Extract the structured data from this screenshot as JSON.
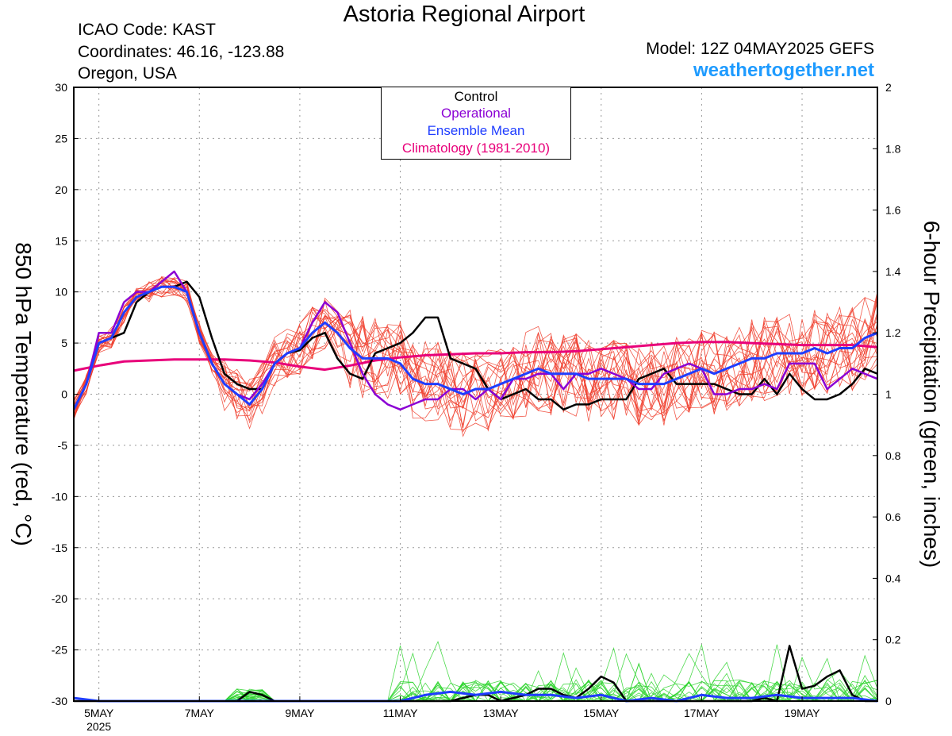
{
  "header": {
    "title": "Astoria Regional Airport",
    "icao": "ICAO Code: KAST",
    "coordinates": "Coordinates: 46.16, -123.88",
    "location": "Oregon, USA",
    "model": "Model: 12Z 04MAY2025 GEFS",
    "brand": "weathertogether.net"
  },
  "colors": {
    "control": "#000000",
    "operational": "#8b00d4",
    "ensemble_mean": "#1f3dff",
    "climatology": "#e8007a",
    "members_temp": "#f03c2a",
    "members_precip": "#2bd42b",
    "brand": "#1e9bff"
  },
  "chart_data": {
    "type": "line",
    "y_left_label": "850 hPa Temperature (red, °C)",
    "y_right_label": "6-hour Precipitation (green, inches)",
    "y_left_range": [
      -30,
      30
    ],
    "y_right_range": [
      0,
      2
    ],
    "y_left_ticks": [
      "30",
      "25",
      "20",
      "15",
      "10",
      "5",
      "0",
      "-5",
      "-10",
      "-15",
      "-20",
      "-25",
      "-30"
    ],
    "y_right_ticks": [
      "2",
      "1.8",
      "1.6",
      "1.4",
      "1.2",
      "1",
      "0.8",
      "0.6",
      "0.4",
      "0.2",
      "0"
    ],
    "x_range_days": [
      4.5,
      20.5
    ],
    "x_ticks": [
      {
        "day": 5,
        "label": "5MAY",
        "sub": "2025"
      },
      {
        "day": 7,
        "label": "7MAY"
      },
      {
        "day": 9,
        "label": "9MAY"
      },
      {
        "day": 11,
        "label": "11MAY"
      },
      {
        "day": 13,
        "label": "13MAY"
      },
      {
        "day": 15,
        "label": "15MAY"
      },
      {
        "day": 17,
        "label": "17MAY"
      },
      {
        "day": 19,
        "label": "19MAY"
      }
    ],
    "grid": true,
    "legend": {
      "position": "top-center",
      "entries": [
        {
          "label": "Control",
          "color": "#000000"
        },
        {
          "label": "Operational",
          "color": "#8b00d4"
        },
        {
          "label": "Ensemble Mean",
          "color": "#1f3dff"
        },
        {
          "label": "Climatology (1981-2010)",
          "color": "#e8007a"
        }
      ]
    },
    "series": [
      {
        "name": "Control",
        "axis": "left",
        "x_days": [
          4.5,
          4.75,
          5,
          5.25,
          5.5,
          5.75,
          6,
          6.25,
          6.5,
          6.75,
          7,
          7.25,
          7.5,
          7.75,
          8,
          8.25,
          8.5,
          8.75,
          9,
          9.25,
          9.5,
          9.75,
          10,
          10.25,
          10.5,
          10.75,
          11,
          11.25,
          11.5,
          11.75,
          12,
          12.25,
          12.5,
          12.75,
          13,
          13.25,
          13.5,
          13.75,
          14,
          14.25,
          14.5,
          14.75,
          15,
          15.25,
          15.5,
          15.75,
          16,
          16.25,
          16.5,
          16.75,
          17,
          17.25,
          17.5,
          17.75,
          18,
          18.25,
          18.5,
          18.75,
          19,
          19.25,
          19.5,
          19.75,
          20,
          20.25,
          20.5
        ],
        "values": [
          -1.5,
          1,
          5,
          5.5,
          6,
          9,
          10,
          10.5,
          10.5,
          11,
          9.5,
          5.5,
          2,
          1,
          0.5,
          0.5,
          3,
          4,
          4.3,
          5.5,
          6,
          3.5,
          2,
          1.5,
          4,
          4.5,
          5,
          6,
          7.5,
          7.5,
          3.5,
          3,
          2.5,
          0.5,
          -0.5,
          0,
          0.5,
          -0.5,
          -0.5,
          -1.5,
          -1,
          -1,
          -0.5,
          -0.5,
          -0.5,
          1.5,
          2,
          2.5,
          1,
          1,
          1,
          1,
          0.5,
          0,
          0,
          1.5,
          0,
          2,
          0.5,
          -0.5,
          -0.5,
          0,
          1,
          2.5,
          2
        ]
      },
      {
        "name": "Operational",
        "axis": "left",
        "x_days": [
          4.5,
          4.75,
          5,
          5.25,
          5.5,
          5.75,
          6,
          6.25,
          6.5,
          6.75,
          7,
          7.25,
          7.5,
          7.75,
          8,
          8.25,
          8.5,
          8.75,
          9,
          9.25,
          9.5,
          9.75,
          10,
          10.25,
          10.5,
          10.75,
          11,
          11.25,
          11.5,
          11.75,
          12,
          12.25,
          12.5,
          12.75,
          13,
          13.25,
          13.5,
          13.75,
          14,
          14.25,
          14.5,
          14.75,
          15,
          15.25,
          15.5,
          15.75,
          16,
          16.25,
          16.5,
          16.75,
          17,
          17.25,
          17.5,
          17.75,
          18,
          18.25,
          18.5,
          18.75,
          19,
          19.25,
          19.5,
          19.75,
          20,
          20.25,
          20.5
        ],
        "values": [
          -1.5,
          1,
          6,
          6,
          9,
          10,
          10,
          11,
          12,
          10,
          6,
          3,
          1,
          0,
          -0.5,
          1,
          3,
          4,
          4.5,
          7,
          9,
          8,
          5,
          2,
          0,
          -1,
          -1.5,
          -1,
          -0.5,
          -0.5,
          0.5,
          0.5,
          -0.5,
          0.5,
          -0.5,
          1.5,
          1.5,
          2,
          2,
          0.5,
          2,
          2,
          2.5,
          2,
          1.5,
          0.5,
          0.5,
          2,
          2.5,
          3,
          2.5,
          0,
          0,
          0.5,
          0.5,
          1,
          0.5,
          3,
          3,
          3,
          0.5,
          1.5,
          2.5,
          2,
          1.5
        ]
      },
      {
        "name": "Ensemble Mean",
        "axis": "left",
        "x_days": [
          4.5,
          4.75,
          5,
          5.25,
          5.5,
          5.75,
          6,
          6.25,
          6.5,
          6.75,
          7,
          7.25,
          7.5,
          7.75,
          8,
          8.25,
          8.5,
          8.75,
          9,
          9.25,
          9.5,
          9.75,
          10,
          10.25,
          10.5,
          10.75,
          11,
          11.25,
          11.5,
          11.75,
          12,
          12.25,
          12.5,
          12.75,
          13,
          13.25,
          13.5,
          13.75,
          14,
          14.25,
          14.5,
          14.75,
          15,
          15.25,
          15.5,
          15.75,
          16,
          16.25,
          16.5,
          16.75,
          17,
          17.25,
          17.5,
          17.75,
          18,
          18.25,
          18.5,
          18.75,
          19,
          19.25,
          19.5,
          19.75,
          20,
          20.25,
          20.5
        ],
        "values": [
          -1.5,
          1,
          5,
          5.5,
          8,
          9.5,
          10,
          10.5,
          10.5,
          10,
          6,
          3,
          1,
          0,
          -1,
          0.5,
          3,
          4,
          4.5,
          6,
          7,
          6,
          4.5,
          3.5,
          3.5,
          3.5,
          3,
          1.5,
          1,
          1,
          0.5,
          0,
          0.5,
          0.5,
          1,
          1.5,
          2,
          2.5,
          2,
          2,
          2,
          1.5,
          1.5,
          1.5,
          1.5,
          1,
          1,
          1,
          1.5,
          2,
          2.5,
          2,
          2.5,
          3,
          3.5,
          3.5,
          4,
          4,
          4,
          4.5,
          4,
          4.5,
          4.5,
          5.5,
          6
        ]
      },
      {
        "name": "Climatology (1981-2010)",
        "axis": "left",
        "x_days": [
          4.5,
          5,
          5.5,
          6,
          6.5,
          7,
          7.5,
          8,
          8.5,
          9,
          9.5,
          10,
          10.5,
          11,
          11.5,
          12,
          12.5,
          13,
          13.5,
          14,
          14.5,
          15,
          15.5,
          16,
          16.5,
          17,
          17.5,
          18,
          18.5,
          19,
          19.5,
          20,
          20.5
        ],
        "values": [
          2.3,
          2.8,
          3.2,
          3.3,
          3.4,
          3.4,
          3.4,
          3.3,
          3.1,
          2.7,
          2.4,
          2.8,
          3.3,
          3.6,
          3.8,
          3.9,
          4,
          4,
          4.1,
          4.1,
          4.2,
          4.4,
          4.6,
          4.8,
          5,
          5.1,
          5.1,
          5,
          4.9,
          4.8,
          4.8,
          4.8,
          4.6
        ]
      },
      {
        "name": "Control",
        "axis": "right",
        "x_days": [
          4.5,
          7.75,
          8,
          8.25,
          8.5,
          11.5,
          12,
          12.25,
          12.5,
          12.75,
          13,
          13.25,
          13.5,
          13.75,
          14,
          14.25,
          14.5,
          14.75,
          15,
          15.25,
          15.5,
          18,
          18.25,
          18.5,
          18.75,
          19,
          19.25,
          19.5,
          19.75,
          20,
          20.25,
          20.5
        ],
        "values": [
          0,
          0,
          0.03,
          0.02,
          0,
          0,
          0,
          0.01,
          0.02,
          0.02,
          0,
          0.01,
          0.02,
          0.04,
          0.04,
          0.02,
          0.01,
          0.04,
          0.08,
          0.06,
          0,
          0,
          0.01,
          0,
          0.18,
          0.04,
          0.05,
          0.08,
          0.1,
          0.02,
          0,
          0
        ]
      },
      {
        "name": "Ensemble Mean",
        "axis": "right",
        "x_days": [
          4.5,
          5,
          11,
          11.5,
          12,
          12.5,
          13,
          13.5,
          14,
          14.5,
          15,
          15.5,
          16,
          16.5,
          17,
          17.5,
          18,
          18.5,
          19,
          19.5,
          20,
          20.5
        ],
        "values": [
          0.01,
          0,
          0,
          0.02,
          0.03,
          0.02,
          0.03,
          0.02,
          0.02,
          0.01,
          0.02,
          0,
          0.01,
          0,
          0.02,
          0.01,
          0.01,
          0.02,
          0.01,
          0.01,
          0.01,
          0
        ]
      }
    ]
  }
}
